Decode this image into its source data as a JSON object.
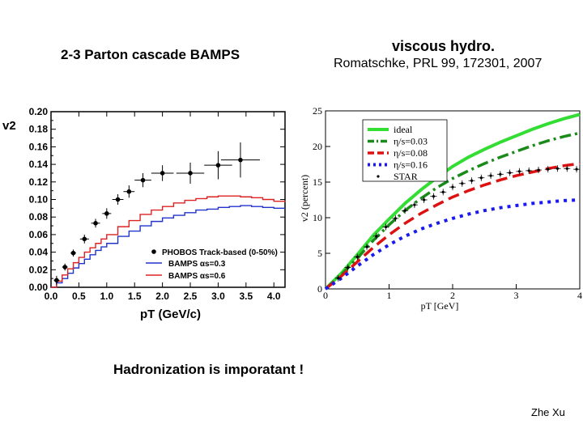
{
  "slide": {
    "left_title": "2-3 Parton cascade BAMPS",
    "right_title": "viscous hydro.",
    "right_reference": "Romatschke, PRL 99, 172301, 2007",
    "bottom_note": "Hadronization is imporatant !",
    "author": "Zhe Xu"
  },
  "chart_data": [
    {
      "type": "scatter",
      "title": "",
      "ylabel": "v2",
      "xlabel": "pT (GeV/c)",
      "xlim": [
        0,
        4.2
      ],
      "ylim": [
        0,
        0.2
      ],
      "x_ticks": [
        "0.0",
        "0.5",
        "1.0",
        "1.5",
        "2.0",
        "2.5",
        "3.0",
        "3.5",
        "4.0"
      ],
      "y_ticks": [
        "0.00",
        "0.02",
        "0.04",
        "0.06",
        "0.08",
        "0.10",
        "0.12",
        "0.14",
        "0.16",
        "0.18",
        "0.20"
      ],
      "legend": [
        {
          "label": "PHOBOS Track-based (0-50%)",
          "color": "#000000",
          "marker": "dot"
        },
        {
          "label": "BAMPS αs=0.3",
          "color": "#2233cc",
          "marker": "line"
        },
        {
          "label": "BAMPS αs=0.6",
          "color": "#dd2222",
          "marker": "line"
        }
      ],
      "series": [
        {
          "name": "PHOBOS Track-based (0-50%)",
          "x": [
            0.1,
            0.25,
            0.4,
            0.6,
            0.8,
            1.0,
            1.2,
            1.4,
            1.65,
            2.0,
            2.5,
            3.0,
            3.4
          ],
          "y": [
            0.008,
            0.023,
            0.039,
            0.055,
            0.073,
            0.084,
            0.1,
            0.109,
            0.122,
            0.13,
            0.13,
            0.139,
            0.145
          ],
          "yerr": [
            0.005,
            0.004,
            0.004,
            0.005,
            0.005,
            0.006,
            0.006,
            0.007,
            0.008,
            0.009,
            0.012,
            0.016,
            0.02
          ],
          "xerr": [
            0.05,
            0.05,
            0.05,
            0.08,
            0.08,
            0.08,
            0.1,
            0.1,
            0.15,
            0.2,
            0.25,
            0.25,
            0.35
          ],
          "color": "#000000"
        },
        {
          "name": "BAMPS αs=0.3",
          "x": [
            0.0,
            0.1,
            0.2,
            0.3,
            0.4,
            0.5,
            0.6,
            0.7,
            0.8,
            0.9,
            1.0,
            1.2,
            1.4,
            1.6,
            1.8,
            2.0,
            2.2,
            2.4,
            2.6,
            2.8,
            3.0,
            3.2,
            3.4,
            3.6,
            3.8,
            4.0,
            4.2
          ],
          "y": [
            0.0,
            0.005,
            0.01,
            0.016,
            0.022,
            0.027,
            0.032,
            0.037,
            0.042,
            0.046,
            0.05,
            0.058,
            0.064,
            0.07,
            0.075,
            0.079,
            0.082,
            0.085,
            0.088,
            0.089,
            0.091,
            0.092,
            0.093,
            0.092,
            0.091,
            0.09,
            0.09
          ],
          "color": "#2233cc"
        },
        {
          "name": "BAMPS αs=0.6",
          "x": [
            0.0,
            0.1,
            0.2,
            0.3,
            0.4,
            0.5,
            0.6,
            0.7,
            0.8,
            0.9,
            1.0,
            1.2,
            1.4,
            1.6,
            1.8,
            2.0,
            2.2,
            2.4,
            2.6,
            2.8,
            3.0,
            3.2,
            3.4,
            3.6,
            3.8,
            4.0,
            4.2
          ],
          "y": [
            0.0,
            0.007,
            0.014,
            0.021,
            0.028,
            0.034,
            0.04,
            0.045,
            0.05,
            0.055,
            0.06,
            0.069,
            0.076,
            0.083,
            0.088,
            0.092,
            0.096,
            0.099,
            0.101,
            0.103,
            0.104,
            0.104,
            0.103,
            0.102,
            0.1,
            0.098,
            0.097
          ],
          "color": "#dd2222"
        }
      ]
    },
    {
      "type": "line",
      "title": "",
      "ylabel": "v2 (percent)",
      "xlabel": "pT [GeV]",
      "xlim": [
        0,
        4
      ],
      "ylim": [
        0,
        25
      ],
      "x_ticks": [
        "0",
        "1",
        "2",
        "3",
        "4"
      ],
      "y_ticks": [
        "0",
        "5",
        "10",
        "15",
        "20",
        "25"
      ],
      "legend": [
        {
          "label": "ideal",
          "color": "#33dd33",
          "style": "solid"
        },
        {
          "label": "η/s=0.03",
          "color": "#1a8a1a",
          "style": "dashdot"
        },
        {
          "label": "η/s=0.08",
          "color": "#dd1111",
          "style": "dashed"
        },
        {
          "label": "η/s=0.16",
          "color": "#1a1aee",
          "style": "dotted"
        },
        {
          "label": "STAR",
          "color": "#000000",
          "style": "points"
        }
      ],
      "series": [
        {
          "name": "ideal",
          "x": [
            0,
            0.25,
            0.5,
            0.75,
            1.0,
            1.25,
            1.5,
            1.75,
            2.0,
            2.25,
            2.5,
            2.75,
            3.0,
            3.25,
            3.5,
            3.75,
            4.0
          ],
          "y": [
            0,
            2.2,
            4.8,
            7.5,
            9.8,
            12.0,
            13.9,
            15.6,
            17.2,
            18.5,
            19.6,
            20.6,
            21.5,
            22.4,
            23.2,
            23.9,
            24.5
          ],
          "color": "#33dd33"
        },
        {
          "name": "η/s=0.03",
          "x": [
            0,
            0.25,
            0.5,
            0.75,
            1.0,
            1.25,
            1.5,
            1.75,
            2.0,
            2.25,
            2.5,
            2.75,
            3.0,
            3.25,
            3.5,
            3.75,
            4.0
          ],
          "y": [
            0,
            2.0,
            4.3,
            6.8,
            9.0,
            11.0,
            12.7,
            14.2,
            15.5,
            16.6,
            17.6,
            18.5,
            19.3,
            20.1,
            20.8,
            21.4,
            21.9
          ],
          "color": "#1a8a1a"
        },
        {
          "name": "η/s=0.08",
          "x": [
            0,
            0.25,
            0.5,
            0.75,
            1.0,
            1.25,
            1.5,
            1.75,
            2.0,
            2.25,
            2.5,
            2.75,
            3.0,
            3.25,
            3.5,
            3.75,
            4.0
          ],
          "y": [
            0,
            1.8,
            3.8,
            5.8,
            7.6,
            9.2,
            10.6,
            11.8,
            12.9,
            13.8,
            14.6,
            15.3,
            15.9,
            16.4,
            16.9,
            17.3,
            17.6
          ],
          "color": "#dd1111"
        },
        {
          "name": "η/s=0.16",
          "x": [
            0,
            0.25,
            0.5,
            0.75,
            1.0,
            1.25,
            1.5,
            1.75,
            2.0,
            2.25,
            2.5,
            2.75,
            3.0,
            3.25,
            3.5,
            3.75,
            4.0
          ],
          "y": [
            0,
            1.5,
            3.2,
            4.8,
            6.2,
            7.4,
            8.4,
            9.2,
            9.9,
            10.5,
            11.0,
            11.4,
            11.7,
            12.0,
            12.2,
            12.4,
            12.5
          ],
          "color": "#1a1aee"
        },
        {
          "name": "STAR",
          "x": [
            0.2,
            0.35,
            0.5,
            0.65,
            0.8,
            0.95,
            1.1,
            1.25,
            1.4,
            1.55,
            1.7,
            1.85,
            2.0,
            2.15,
            2.3,
            2.45,
            2.6,
            2.75,
            2.9,
            3.05,
            3.2,
            3.35,
            3.5,
            3.65,
            3.8,
            3.95
          ],
          "y": [
            1.5,
            3.0,
            4.5,
            5.9,
            7.4,
            8.7,
            9.9,
            11.0,
            11.8,
            12.5,
            13.0,
            13.6,
            14.3,
            14.8,
            15.2,
            15.6,
            15.9,
            16.1,
            16.3,
            16.5,
            16.6,
            16.7,
            16.8,
            16.9,
            16.9,
            16.8
          ],
          "color": "#000000"
        }
      ]
    }
  ]
}
